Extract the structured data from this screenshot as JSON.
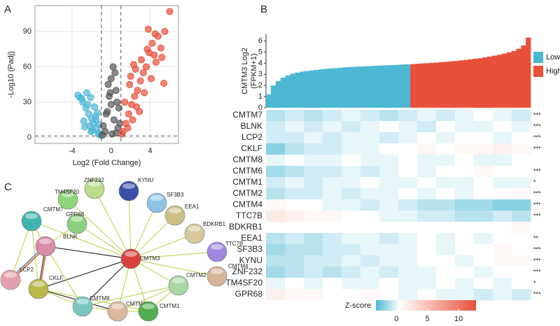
{
  "chart_data": [
    {
      "type": "scatter",
      "panel": "A",
      "xlabel": "Log2 (Fold Change)",
      "ylabel": "-Log10 (Padj)",
      "xlim": [
        -7.8,
        6.9
      ],
      "ylim": [
        -5,
        112
      ],
      "xticks": [
        -4,
        0,
        4
      ],
      "yticks": [
        0,
        30,
        60,
        90
      ],
      "grid": true,
      "thresholds": {
        "x": [
          -1,
          1
        ],
        "y": 1.3
      },
      "series": [
        {
          "color": "#4db8d8",
          "x": [
            -1.2,
            -1.5,
            -1.8,
            -2.0,
            -2.3,
            -2.6,
            -2.9,
            -3.2,
            -1.4,
            -1.7,
            -2.1,
            -2.5,
            -1.3,
            -1.9,
            -2.2,
            -2.8,
            -1.6,
            -1.1,
            -2.4,
            -3.0,
            -1.25,
            -1.55,
            -2.05,
            -2.7,
            -3.4
          ],
          "y": [
            4,
            8,
            12,
            16,
            20,
            25,
            30,
            34,
            21,
            26,
            34,
            38,
            3,
            6,
            10,
            14,
            18,
            2,
            28,
            33,
            11,
            15,
            5,
            9,
            36
          ]
        },
        {
          "color": "#5a5a5a",
          "x": [
            -0.8,
            -0.5,
            -0.2,
            0,
            0.2,
            0.5,
            0.8,
            -0.6,
            0.3,
            0.7,
            -0.3,
            0.1,
            0.6,
            -0.9,
            0.9,
            0.4,
            -0.4,
            0,
            0.5,
            -0.1
          ],
          "y": [
            10,
            20,
            35,
            50,
            60,
            40,
            25,
            5,
            15,
            8,
            45,
            3,
            30,
            2,
            12,
            55,
            22,
            28,
            4,
            38
          ]
        },
        {
          "color": "#e8513a",
          "x": [
            1.2,
            1.5,
            1.8,
            2.1,
            2.4,
            2.7,
            3.0,
            3.3,
            3.6,
            3.9,
            4.2,
            4.5,
            4.8,
            5.1,
            5.5,
            6.0,
            1.4,
            1.9,
            2.5,
            3.1,
            3.7,
            4.4,
            5.2,
            1.1,
            2.2,
            2.9,
            3.4,
            4.1,
            4.6,
            5.4,
            1.7,
            2.6,
            3.8,
            2.0,
            2.3
          ],
          "y": [
            5,
            12,
            20,
            28,
            35,
            40,
            48,
            55,
            60,
            72,
            80,
            88,
            86,
            76,
            90,
            107,
            30,
            45,
            58,
            66,
            75,
            70,
            68,
            3,
            15,
            22,
            38,
            50,
            64,
            46,
            8,
            26,
            92,
            52,
            62
          ]
        }
      ]
    },
    {
      "type": "bar",
      "panel": "B",
      "ylabel": [
        "CMTM3 Log2",
        "(FPKM+1)"
      ],
      "ylim": [
        0,
        6.6
      ],
      "yticks": [
        0,
        1,
        2,
        3,
        4,
        5,
        6
      ],
      "legend": "right",
      "series": [
        {
          "name": "Low",
          "color": "#4cb8d4",
          "values": [
            1.2,
            2.0,
            2.4,
            2.7,
            2.9,
            3.05,
            3.15,
            3.25,
            3.3,
            3.35,
            3.4,
            3.45,
            3.5,
            3.53,
            3.56,
            3.6,
            3.63,
            3.66,
            3.68,
            3.7,
            3.72,
            3.74,
            3.76,
            3.78,
            3.8,
            3.82,
            3.84,
            3.86,
            3.88,
            3.9
          ]
        },
        {
          "name": "High",
          "color": "#e8503a",
          "values": [
            3.92,
            3.95,
            3.98,
            4.0,
            4.03,
            4.06,
            4.1,
            4.13,
            4.17,
            4.2,
            4.25,
            4.3,
            4.35,
            4.4,
            4.45,
            4.52,
            4.6,
            4.68,
            4.76,
            4.86,
            4.98,
            5.1,
            5.3,
            5.6,
            6.3
          ]
        }
      ]
    },
    {
      "type": "heatmap",
      "categories": [
        "CMTM7",
        "BLNK",
        "LCP2",
        "CKLF",
        "CMTM8",
        "CMTM6",
        "CMTM1",
        "CMTM2",
        "CMTM4",
        "TTC7B",
        "BDKRB1",
        "EEA1",
        "SF3B3",
        "KYNU",
        "ZNF232",
        "TM4SF20",
        "GPR68"
      ],
      "annotations": [
        "***",
        "***",
        "***",
        "***",
        null,
        "***",
        "*",
        "***",
        "***",
        "***",
        null,
        "**",
        "***",
        "***",
        "***",
        "*",
        "***"
      ],
      "colorbar": {
        "label": "Z-score",
        "lim": [
          -3.3,
          12.8
        ],
        "ticks": [
          0,
          5,
          10
        ],
        "colors": [
          "#4cb8d4",
          "#ffffff",
          "#e8503a"
        ]
      },
      "values": [
        [
          -1,
          -0.5,
          -1,
          -0.5,
          0,
          -0.5,
          -1,
          -0.5,
          0,
          -0.5,
          0,
          0.5,
          0,
          -0.5
        ],
        [
          -0.5,
          0,
          -0.5,
          0,
          -0.5,
          0,
          0.5,
          0,
          -0.5,
          0.5,
          0,
          0,
          0.5,
          0
        ],
        [
          -0.5,
          -0.5,
          0,
          -0.5,
          0,
          0,
          -0.5,
          0,
          0.5,
          0,
          0.5,
          0.5,
          0,
          0.5
        ],
        [
          -2,
          -1,
          -0.5,
          -0.5,
          0,
          0,
          0.5,
          0.5,
          1,
          0.5,
          1,
          1,
          1.5,
          1
        ],
        [
          0,
          0.5,
          0,
          0,
          0.5,
          0,
          0,
          0.5,
          0,
          0,
          0.5,
          0,
          0,
          0.5
        ],
        [
          -1.5,
          -1,
          -0.5,
          -0.5,
          0,
          -0.5,
          0,
          0.5,
          0,
          0.5,
          0.5,
          1,
          0.5,
          0.5
        ],
        [
          -0.5,
          0,
          -0.5,
          0,
          0,
          0.5,
          0,
          0,
          0.5,
          0,
          0,
          0.5,
          0,
          0
        ],
        [
          -1,
          -0.5,
          -0.5,
          0,
          -0.5,
          0,
          0,
          0.5,
          0,
          0.5,
          0,
          0.5,
          0.5,
          1
        ],
        [
          1,
          0.5,
          0.5,
          0,
          0,
          -0.5,
          0,
          -0.5,
          -1,
          -1,
          -1.5,
          -1.5,
          -2,
          -2
        ],
        [
          2,
          1.5,
          1,
          1,
          0.5,
          0.5,
          0,
          0,
          -0.5,
          -0.5,
          -1,
          -1,
          -0.5,
          -1
        ],
        [
          0.5,
          0.5,
          0.5,
          0.5,
          0.5,
          0.5,
          0.5,
          0.5,
          0.5,
          0.5,
          0.5,
          0.5,
          0.5,
          1
        ],
        [
          -1,
          -0.5,
          -1,
          -0.5,
          0,
          0,
          -0.5,
          0,
          0.5,
          0,
          0.5,
          0,
          0.5,
          0.5
        ],
        [
          -1.5,
          -1,
          -1,
          -0.5,
          -0.5,
          0,
          0,
          0,
          0.5,
          0,
          0.5,
          0.5,
          1,
          0.5
        ],
        [
          -1,
          -1,
          -0.5,
          -0.5,
          0,
          -0.5,
          0,
          0,
          0.5,
          0.5,
          0,
          0.5,
          1,
          1
        ],
        [
          -1.5,
          -1,
          -0.5,
          -1,
          -0.5,
          0,
          -0.5,
          0,
          0,
          0.5,
          0.5,
          0,
          0.5,
          0.5
        ],
        [
          0,
          0.5,
          0,
          0.5,
          0,
          0,
          0.5,
          0,
          0,
          0.5,
          0,
          0.5,
          0,
          0.5
        ],
        [
          1.5,
          1,
          1,
          0.5,
          0.5,
          1,
          0.5,
          0,
          0.5,
          0,
          0,
          -0.5,
          0,
          -0.5
        ]
      ]
    }
  ],
  "network": {
    "panel": "C",
    "nodes": [
      {
        "label": "CMTM3",
        "color": "#d9413e"
      },
      {
        "label": "CMTM7",
        "color": "#3fb5b0"
      },
      {
        "label": "TM4SF20",
        "color": "#8fd67a"
      },
      {
        "label": "ZNF232",
        "color": "#b9dd8a"
      },
      {
        "label": "KYNU",
        "color": "#3a4fa8"
      },
      {
        "label": "SF3B3",
        "color": "#8ec3e6"
      },
      {
        "label": "EEA1",
        "color": "#cdbf86"
      },
      {
        "label": "BDKRB1",
        "color": "#d7c99a"
      },
      {
        "label": "TTC7B",
        "color": "#9e88e0"
      },
      {
        "label": "CMTM4",
        "color": "#d6b79a"
      },
      {
        "label": "CMTM2",
        "color": "#a9d7a6"
      },
      {
        "label": "GPR68",
        "color": "#8ad07e"
      },
      {
        "label": "BLNK",
        "color": "#d98ca8"
      },
      {
        "label": "LCP2",
        "color": "#e4a0aa"
      },
      {
        "label": "CKLF",
        "color": "#b7b94a"
      },
      {
        "label": "CMTM8",
        "color": "#79c6c0"
      },
      {
        "label": "CMTM6",
        "color": "#dcb9a0"
      },
      {
        "label": "CMTM1",
        "color": "#4fae4f"
      }
    ]
  }
}
